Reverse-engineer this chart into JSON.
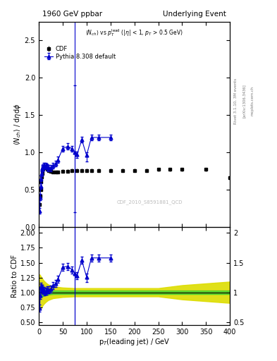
{
  "title_left": "1960 GeV ppbar",
  "title_right": "Underlying Event",
  "ylabel_main": "$\\langle N_{ch}\\rangle$ / d$\\eta$d$\\phi$",
  "ylabel_ratio": "Ratio to CDF",
  "xlabel": "p$_T$(leading jet) / GeV",
  "watermark": "CDF_2010_S8591881_QCD",
  "right_label1": "Rivet 3.1.10, 3M events",
  "right_label2": "[arXiv:1306.3436]",
  "right_label3": "mcplots.cern.ch",
  "ylim_main": [
    0.0,
    2.75
  ],
  "ylim_ratio": [
    0.45,
    2.1
  ],
  "xlim": [
    0,
    400
  ],
  "vline_x": 75,
  "cdf_x": [
    2,
    3,
    4,
    5,
    6,
    7,
    8,
    9,
    10,
    12,
    14,
    16,
    18,
    20,
    25,
    30,
    35,
    40,
    50,
    60,
    70,
    80,
    90,
    100,
    110,
    125,
    150,
    175,
    200,
    225,
    250,
    275,
    300,
    350,
    400
  ],
  "cdf_y": [
    0.3,
    0.42,
    0.5,
    0.6,
    0.67,
    0.72,
    0.76,
    0.78,
    0.8,
    0.81,
    0.8,
    0.79,
    0.77,
    0.76,
    0.75,
    0.74,
    0.74,
    0.74,
    0.75,
    0.75,
    0.76,
    0.76,
    0.76,
    0.76,
    0.76,
    0.76,
    0.76,
    0.76,
    0.76,
    0.76,
    0.77,
    0.77,
    0.77,
    0.77,
    0.66
  ],
  "cdf_yerr": [
    0.02,
    0.02,
    0.02,
    0.02,
    0.02,
    0.02,
    0.02,
    0.02,
    0.02,
    0.02,
    0.02,
    0.02,
    0.02,
    0.02,
    0.02,
    0.02,
    0.02,
    0.02,
    0.02,
    0.02,
    0.02,
    0.02,
    0.02,
    0.02,
    0.02,
    0.02,
    0.02,
    0.02,
    0.02,
    0.02,
    0.02,
    0.02,
    0.02,
    0.02,
    0.02
  ],
  "mc_x": [
    2,
    3,
    4,
    5,
    6,
    7,
    8,
    9,
    10,
    12,
    14,
    16,
    18,
    20,
    25,
    30,
    35,
    40,
    50,
    60,
    70,
    75,
    80,
    90,
    100,
    110,
    125,
    150
  ],
  "mc_y": [
    0.22,
    0.4,
    0.55,
    0.65,
    0.72,
    0.77,
    0.79,
    0.8,
    0.82,
    0.82,
    0.82,
    0.81,
    0.8,
    0.79,
    0.79,
    0.82,
    0.85,
    0.9,
    1.05,
    1.08,
    1.05,
    1.0,
    0.97,
    1.17,
    0.96,
    1.2,
    1.2,
    1.2
  ],
  "mc_yerr_lo": [
    0.04,
    0.04,
    0.04,
    0.04,
    0.04,
    0.04,
    0.04,
    0.04,
    0.04,
    0.04,
    0.04,
    0.04,
    0.04,
    0.04,
    0.04,
    0.04,
    0.04,
    0.04,
    0.04,
    0.04,
    0.04,
    0.8,
    0.04,
    0.04,
    0.08,
    0.04,
    0.04,
    0.04
  ],
  "mc_yerr_hi": [
    0.04,
    0.04,
    0.04,
    0.04,
    0.04,
    0.04,
    0.04,
    0.04,
    0.04,
    0.04,
    0.04,
    0.04,
    0.04,
    0.04,
    0.04,
    0.04,
    0.04,
    0.04,
    0.04,
    0.04,
    0.04,
    0.9,
    0.04,
    0.04,
    0.04,
    0.04,
    0.04,
    0.04
  ],
  "ratio_mc_y": [
    0.73,
    0.95,
    1.1,
    1.08,
    1.07,
    1.07,
    1.04,
    1.03,
    1.03,
    1.01,
    1.02,
    1.02,
    1.04,
    1.04,
    1.05,
    1.11,
    1.15,
    1.22,
    1.42,
    1.44,
    1.38,
    1.32,
    1.28,
    1.54,
    1.26,
    1.58,
    1.58,
    1.58
  ],
  "ratio_mc_yerr_lo": [
    0.06,
    0.06,
    0.06,
    0.06,
    0.06,
    0.06,
    0.06,
    0.06,
    0.06,
    0.06,
    0.06,
    0.06,
    0.06,
    0.06,
    0.06,
    0.06,
    0.06,
    0.06,
    0.06,
    0.06,
    0.06,
    1.05,
    0.06,
    0.06,
    0.09,
    0.06,
    0.06,
    0.06
  ],
  "ratio_mc_yerr_hi": [
    0.06,
    0.06,
    0.06,
    0.06,
    0.06,
    0.06,
    0.06,
    0.06,
    0.06,
    0.06,
    0.06,
    0.06,
    0.06,
    0.06,
    0.06,
    0.06,
    0.06,
    0.06,
    0.06,
    0.06,
    0.06,
    1.2,
    0.06,
    0.06,
    0.06,
    0.06,
    0.06,
    0.06
  ],
  "band_x": [
    0,
    2,
    5,
    10,
    15,
    20,
    30,
    50,
    75,
    100,
    150,
    200,
    250,
    300,
    350,
    400
  ],
  "band_green_lo": [
    0.9,
    0.9,
    0.92,
    0.94,
    0.95,
    0.96,
    0.97,
    0.97,
    0.97,
    0.97,
    0.97,
    0.97,
    0.97,
    0.97,
    0.97,
    0.97
  ],
  "band_green_hi": [
    1.1,
    1.1,
    1.08,
    1.06,
    1.05,
    1.04,
    1.03,
    1.03,
    1.03,
    1.03,
    1.03,
    1.03,
    1.03,
    1.03,
    1.03,
    1.03
  ],
  "band_yellow_lo": [
    0.7,
    0.7,
    0.74,
    0.8,
    0.84,
    0.87,
    0.9,
    0.92,
    0.93,
    0.93,
    0.93,
    0.93,
    0.93,
    0.88,
    0.85,
    0.82
  ],
  "band_yellow_hi": [
    1.3,
    1.3,
    1.26,
    1.2,
    1.16,
    1.13,
    1.1,
    1.08,
    1.07,
    1.07,
    1.07,
    1.07,
    1.07,
    1.12,
    1.15,
    1.18
  ],
  "cdf_color": "#000000",
  "mc_color": "#0000cc",
  "band_green_color": "#33cc33",
  "band_yellow_color": "#dddd00",
  "vline_color": "#0000cc",
  "background_color": "#ffffff"
}
